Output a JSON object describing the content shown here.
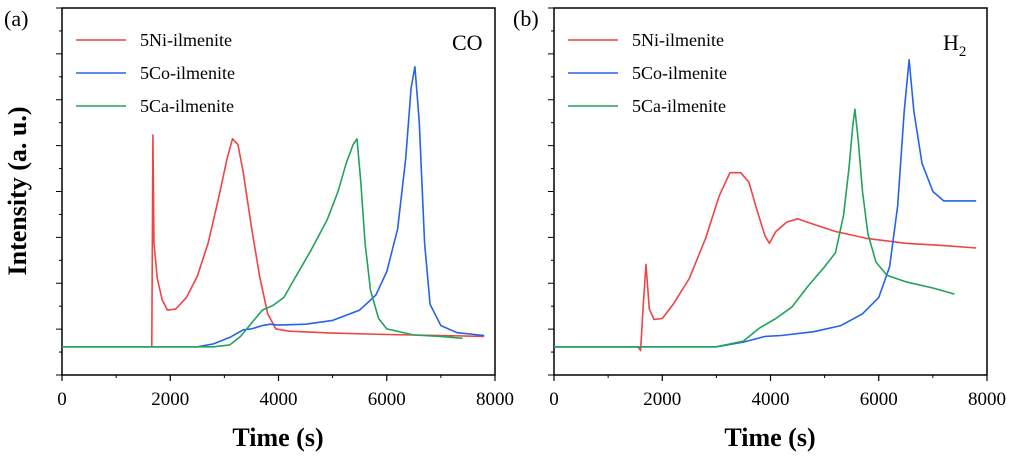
{
  "chart_data": [
    {
      "type": "line",
      "panel_label": "(a)",
      "gas_label": "CO",
      "gas_sub": "",
      "xlabel": "Time (s)",
      "ylabel": "Intensity (a. u.)",
      "xlim": [
        0,
        8000
      ],
      "ylim": [
        -0.6,
        7.2
      ],
      "xticks": [
        "0",
        "2000",
        "4000",
        "6000",
        "8000"
      ],
      "series": [
        {
          "name": "5Ni-ilmenite",
          "color": "#ef4444",
          "points": [
            [
              1660,
              0.0
            ],
            [
              1680,
              4.5
            ],
            [
              1700,
              2.2
            ],
            [
              1760,
              1.45
            ],
            [
              1850,
              1.0
            ],
            [
              1950,
              0.78
            ],
            [
              2100,
              0.8
            ],
            [
              2300,
              1.05
            ],
            [
              2500,
              1.5
            ],
            [
              2700,
              2.2
            ],
            [
              2900,
              3.2
            ],
            [
              3050,
              4.0
            ],
            [
              3150,
              4.42
            ],
            [
              3250,
              4.3
            ],
            [
              3350,
              3.7
            ],
            [
              3500,
              2.55
            ],
            [
              3650,
              1.5
            ],
            [
              3800,
              0.7
            ],
            [
              3950,
              0.38
            ],
            [
              4200,
              0.33
            ],
            [
              5000,
              0.29
            ],
            [
              6000,
              0.26
            ],
            [
              7000,
              0.24
            ],
            [
              7800,
              0.22
            ]
          ]
        },
        {
          "name": "5Co-ilmenite",
          "color": "#2563eb",
          "points": [
            [
              0,
              0.0
            ],
            [
              2500,
              0.0
            ],
            [
              2800,
              0.06
            ],
            [
              3100,
              0.2
            ],
            [
              3350,
              0.36
            ],
            [
              3500,
              0.38
            ],
            [
              3700,
              0.45
            ],
            [
              3850,
              0.48
            ],
            [
              4000,
              0.46
            ],
            [
              4500,
              0.48
            ],
            [
              5000,
              0.56
            ],
            [
              5500,
              0.78
            ],
            [
              5800,
              1.1
            ],
            [
              6000,
              1.6
            ],
            [
              6200,
              2.5
            ],
            [
              6350,
              4.0
            ],
            [
              6450,
              5.5
            ],
            [
              6520,
              5.95
            ],
            [
              6600,
              4.8
            ],
            [
              6700,
              2.2
            ],
            [
              6800,
              0.9
            ],
            [
              7000,
              0.45
            ],
            [
              7300,
              0.3
            ],
            [
              7800,
              0.24
            ]
          ]
        },
        {
          "name": "5Ca-ilmenite",
          "color": "#22a35a",
          "points": [
            [
              0,
              0.0
            ],
            [
              2800,
              0.0
            ],
            [
              3100,
              0.04
            ],
            [
              3300,
              0.22
            ],
            [
              3500,
              0.5
            ],
            [
              3700,
              0.78
            ],
            [
              3900,
              0.88
            ],
            [
              4100,
              1.05
            ],
            [
              4300,
              1.45
            ],
            [
              4600,
              2.05
            ],
            [
              4900,
              2.7
            ],
            [
              5100,
              3.3
            ],
            [
              5250,
              3.9
            ],
            [
              5380,
              4.3
            ],
            [
              5450,
              4.42
            ],
            [
              5520,
              3.5
            ],
            [
              5600,
              2.2
            ],
            [
              5700,
              1.2
            ],
            [
              5850,
              0.6
            ],
            [
              6000,
              0.38
            ],
            [
              6500,
              0.25
            ],
            [
              7000,
              0.22
            ],
            [
              7400,
              0.18
            ]
          ]
        }
      ]
    },
    {
      "type": "line",
      "panel_label": "(b)",
      "gas_label": "H",
      "gas_sub": "2",
      "xlabel": "Time (s)",
      "ylabel": "",
      "xlim": [
        0,
        8000
      ],
      "ylim": [
        -0.6,
        7.2
      ],
      "xticks": [
        "0",
        "2000",
        "4000",
        "6000",
        "8000"
      ],
      "series": [
        {
          "name": "5Ni-ilmenite",
          "color": "#ef4444",
          "points": [
            [
              0,
              0.0
            ],
            [
              1550,
              0.0
            ],
            [
              1600,
              -0.08
            ],
            [
              1650,
              0.9
            ],
            [
              1700,
              1.75
            ],
            [
              1760,
              0.8
            ],
            [
              1850,
              0.58
            ],
            [
              2000,
              0.6
            ],
            [
              2200,
              0.9
            ],
            [
              2500,
              1.45
            ],
            [
              2800,
              2.3
            ],
            [
              3050,
              3.2
            ],
            [
              3250,
              3.7
            ],
            [
              3450,
              3.7
            ],
            [
              3600,
              3.5
            ],
            [
              3750,
              2.9
            ],
            [
              3900,
              2.35
            ],
            [
              3980,
              2.2
            ],
            [
              4100,
              2.45
            ],
            [
              4300,
              2.65
            ],
            [
              4500,
              2.72
            ],
            [
              4800,
              2.6
            ],
            [
              5200,
              2.45
            ],
            [
              5800,
              2.3
            ],
            [
              6500,
              2.2
            ],
            [
              7200,
              2.15
            ],
            [
              7800,
              2.1
            ]
          ]
        },
        {
          "name": "5Co-ilmenite",
          "color": "#2563eb",
          "points": [
            [
              0,
              0.0
            ],
            [
              3000,
              0.0
            ],
            [
              3500,
              0.1
            ],
            [
              3900,
              0.22
            ],
            [
              4200,
              0.24
            ],
            [
              4800,
              0.32
            ],
            [
              5300,
              0.45
            ],
            [
              5700,
              0.7
            ],
            [
              6000,
              1.05
            ],
            [
              6200,
              1.7
            ],
            [
              6350,
              3.0
            ],
            [
              6470,
              5.0
            ],
            [
              6560,
              6.1
            ],
            [
              6650,
              5.0
            ],
            [
              6800,
              3.9
            ],
            [
              7000,
              3.3
            ],
            [
              7200,
              3.1
            ],
            [
              7500,
              3.1
            ],
            [
              7800,
              3.1
            ]
          ]
        },
        {
          "name": "5Ca-ilmenite",
          "color": "#22a35a",
          "points": [
            [
              0,
              0.0
            ],
            [
              3000,
              0.0
            ],
            [
              3500,
              0.12
            ],
            [
              3800,
              0.4
            ],
            [
              4100,
              0.6
            ],
            [
              4400,
              0.85
            ],
            [
              4700,
              1.3
            ],
            [
              5000,
              1.7
            ],
            [
              5200,
              2.0
            ],
            [
              5350,
              2.8
            ],
            [
              5450,
              3.8
            ],
            [
              5520,
              4.7
            ],
            [
              5560,
              5.05
            ],
            [
              5620,
              4.4
            ],
            [
              5700,
              3.3
            ],
            [
              5800,
              2.4
            ],
            [
              5950,
              1.8
            ],
            [
              6150,
              1.52
            ],
            [
              6500,
              1.38
            ],
            [
              7000,
              1.25
            ],
            [
              7400,
              1.12
            ]
          ]
        }
      ]
    }
  ]
}
